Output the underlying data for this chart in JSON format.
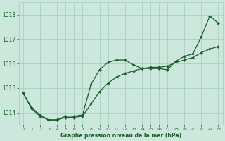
{
  "background_color": "#cce8dc",
  "grid_color": "#aacfc4",
  "line_color": "#1a5c2a",
  "xlabel": "Graphe pression niveau de la mer (hPa)",
  "xlim": [
    -0.5,
    23.5
  ],
  "ylim": [
    1013.5,
    1018.5
  ],
  "yticks": [
    1014,
    1015,
    1016,
    1017,
    1018
  ],
  "xticks": [
    0,
    1,
    2,
    3,
    4,
    5,
    6,
    7,
    8,
    9,
    10,
    11,
    12,
    13,
    14,
    15,
    16,
    17,
    18,
    19,
    20,
    21,
    22,
    23
  ],
  "series1_x": [
    0,
    1,
    2,
    3,
    4,
    5,
    6,
    7,
    8,
    9,
    10,
    11,
    12,
    13,
    14,
    15,
    16,
    17,
    18,
    19,
    20,
    21,
    22,
    23
  ],
  "series1_y": [
    1014.8,
    1014.2,
    1013.9,
    1013.7,
    1013.7,
    1013.85,
    1013.85,
    1013.9,
    1015.15,
    1015.75,
    1016.05,
    1016.15,
    1016.15,
    1015.95,
    1015.8,
    1015.8,
    1015.8,
    1015.75,
    1016.1,
    1016.3,
    1016.4,
    1017.1,
    1017.95,
    1017.65
  ],
  "series2_x": [
    0,
    1,
    2,
    3,
    4,
    5,
    6,
    7,
    8,
    9,
    10,
    11,
    12,
    13,
    14,
    15,
    16,
    17,
    18,
    19,
    20,
    21,
    22,
    23
  ],
  "series2_y": [
    1014.8,
    1014.15,
    1013.85,
    1013.7,
    1013.7,
    1013.8,
    1013.8,
    1013.85,
    1014.35,
    1014.85,
    1015.2,
    1015.45,
    1015.6,
    1015.7,
    1015.8,
    1015.85,
    1015.85,
    1015.9,
    1016.05,
    1016.15,
    1016.25,
    1016.45,
    1016.6,
    1016.7
  ],
  "marker_size": 2.0,
  "linewidth": 0.9
}
